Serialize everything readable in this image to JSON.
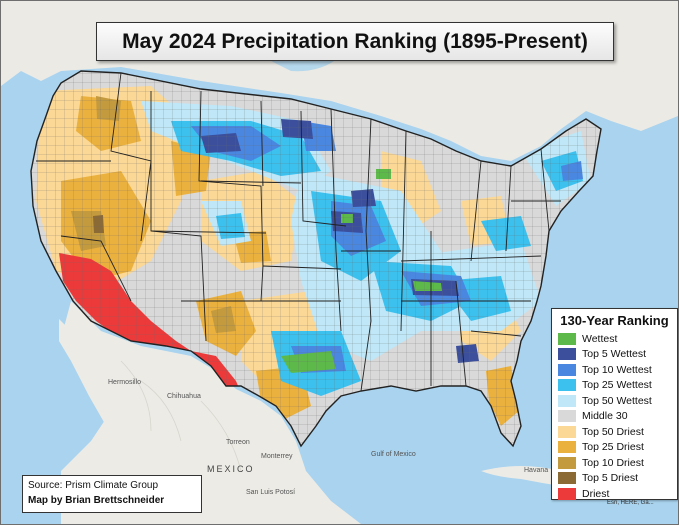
{
  "title": "May 2024 Precipitation Ranking (1895-Present)",
  "legend": {
    "title": "130-Year Ranking",
    "items": [
      {
        "label": "Wettest",
        "color": "#5cb94a"
      },
      {
        "label": "Top 5 Wettest",
        "color": "#3b4f9c"
      },
      {
        "label": "Top 10 Wettest",
        "color": "#4a87e0"
      },
      {
        "label": "Top 25 Wettest",
        "color": "#3cc0ee"
      },
      {
        "label": "Top 50 Wettest",
        "color": "#bfe7f7"
      },
      {
        "label": "Middle 30",
        "color": "#d9d9d9"
      },
      {
        "label": "Top 50 Driest",
        "color": "#fbd895"
      },
      {
        "label": "Top 25 Driest",
        "color": "#ebb13e"
      },
      {
        "label": "Top 10 Driest",
        "color": "#c49a3e"
      },
      {
        "label": "Top 5 Driest",
        "color": "#8c6a34"
      },
      {
        "label": "Driest",
        "color": "#ec3a3a"
      }
    ]
  },
  "source": "Source: Prism Climate Group",
  "credit": "Map by Brian Brettschneider",
  "basemap": {
    "ocean_color": "#a9d3ee",
    "land_color": "#ecebe6",
    "mexico_label": "MEXICO",
    "places": [
      "Chihuahua",
      "Torreon",
      "Monterrey",
      "Hermosillo",
      "San Luis Potosí",
      "Havana",
      "Gulf of Mexico"
    ],
    "attribution": "Esri, HERE, Ga..."
  }
}
